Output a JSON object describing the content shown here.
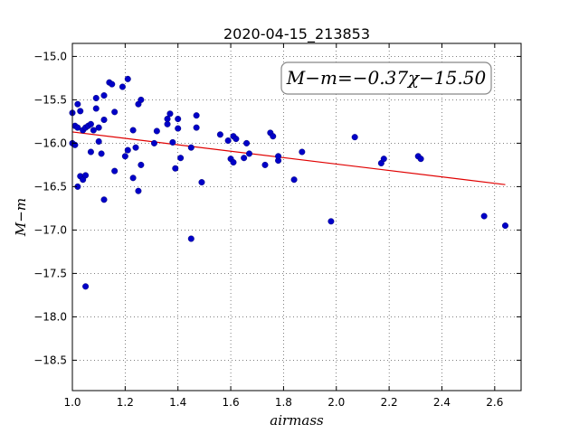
{
  "chart_data": {
    "type": "scatter",
    "title": "2020-04-15_213853",
    "xlabel": "airmass",
    "ylabel": "M−m",
    "xlim": [
      1.0,
      2.7
    ],
    "ylim": [
      -18.85,
      -14.85
    ],
    "y_inverted": true,
    "grid": true,
    "x_ticks": [
      1.0,
      1.2,
      1.4,
      1.6,
      1.8,
      2.0,
      2.2,
      2.4,
      2.6
    ],
    "x_tick_labels": [
      "1.0",
      "1.2",
      "1.4",
      "1.6",
      "1.8",
      "2.0",
      "2.2",
      "2.4",
      "2.6"
    ],
    "y_ticks": [
      -15.0,
      -15.5,
      -16.0,
      -16.5,
      -17.0,
      -17.5,
      -18.0,
      -18.5
    ],
    "y_tick_labels": [
      "−15.0",
      "−15.5",
      "−16.0",
      "−16.5",
      "−17.0",
      "−17.5",
      "−18.0",
      "−18.5"
    ],
    "annotation": "M−m=−0.37χ−15.50",
    "fit": {
      "slope": -0.37,
      "intercept": -15.5,
      "x_range": [
        1.0,
        2.64
      ],
      "color": "#e00000"
    },
    "point_color": "#0000c8",
    "series": [
      {
        "points": [
          [
            1.0,
            -15.65
          ],
          [
            1.0,
            -16.0
          ],
          [
            1.01,
            -15.8
          ],
          [
            1.01,
            -16.02
          ],
          [
            1.02,
            -15.55
          ],
          [
            1.02,
            -15.82
          ],
          [
            1.02,
            -16.5
          ],
          [
            1.03,
            -15.63
          ],
          [
            1.03,
            -16.38
          ],
          [
            1.04,
            -15.85
          ],
          [
            1.04,
            -16.42
          ],
          [
            1.05,
            -15.82
          ],
          [
            1.05,
            -16.37
          ],
          [
            1.05,
            -17.65
          ],
          [
            1.06,
            -15.8
          ],
          [
            1.07,
            -16.1
          ],
          [
            1.07,
            -15.78
          ],
          [
            1.08,
            -15.85
          ],
          [
            1.09,
            -15.48
          ],
          [
            1.09,
            -15.6
          ],
          [
            1.1,
            -15.82
          ],
          [
            1.1,
            -15.98
          ],
          [
            1.11,
            -16.12
          ],
          [
            1.12,
            -15.45
          ],
          [
            1.12,
            -15.73
          ],
          [
            1.12,
            -16.65
          ],
          [
            1.14,
            -15.3
          ],
          [
            1.15,
            -15.32
          ],
          [
            1.16,
            -15.64
          ],
          [
            1.16,
            -16.32
          ],
          [
            1.19,
            -15.35
          ],
          [
            1.2,
            -16.15
          ],
          [
            1.21,
            -15.26
          ],
          [
            1.21,
            -16.08
          ],
          [
            1.23,
            -15.85
          ],
          [
            1.23,
            -16.4
          ],
          [
            1.24,
            -16.05
          ],
          [
            1.25,
            -15.55
          ],
          [
            1.25,
            -16.55
          ],
          [
            1.26,
            -15.5
          ],
          [
            1.26,
            -16.25
          ],
          [
            1.31,
            -16.0
          ],
          [
            1.32,
            -15.86
          ],
          [
            1.36,
            -15.78
          ],
          [
            1.36,
            -15.72
          ],
          [
            1.37,
            -15.66
          ],
          [
            1.38,
            -15.99
          ],
          [
            1.39,
            -16.29
          ],
          [
            1.4,
            -15.72
          ],
          [
            1.4,
            -15.83
          ],
          [
            1.41,
            -16.17
          ],
          [
            1.45,
            -16.05
          ],
          [
            1.45,
            -17.1
          ],
          [
            1.47,
            -15.82
          ],
          [
            1.47,
            -15.68
          ],
          [
            1.49,
            -16.45
          ],
          [
            1.56,
            -15.9
          ],
          [
            1.59,
            -15.97
          ],
          [
            1.6,
            -16.18
          ],
          [
            1.61,
            -15.92
          ],
          [
            1.61,
            -16.22
          ],
          [
            1.62,
            -15.95
          ],
          [
            1.65,
            -16.17
          ],
          [
            1.66,
            -16.0
          ],
          [
            1.67,
            -16.12
          ],
          [
            1.73,
            -16.25
          ],
          [
            1.75,
            -15.88
          ],
          [
            1.76,
            -15.92
          ],
          [
            1.78,
            -16.2
          ],
          [
            1.78,
            -16.15
          ],
          [
            1.84,
            -16.42
          ],
          [
            1.87,
            -16.1
          ],
          [
            1.98,
            -16.9
          ],
          [
            2.07,
            -15.93
          ],
          [
            2.17,
            -16.23
          ],
          [
            2.18,
            -16.18
          ],
          [
            2.31,
            -16.15
          ],
          [
            2.32,
            -16.18
          ],
          [
            2.56,
            -16.84
          ],
          [
            2.64,
            -16.95
          ]
        ]
      }
    ]
  }
}
